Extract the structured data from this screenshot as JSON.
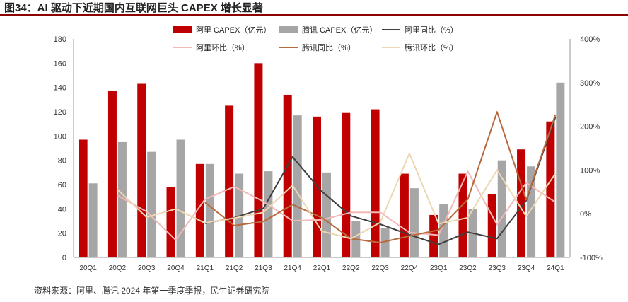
{
  "title": "图34：AI 驱动下近期国内互联网巨头 CAPEX 增长显著",
  "source": "资料来源：阿里、腾讯 2024 年第一季度季报，民生证券研究院",
  "chart_data": {
    "type": "bar",
    "categories": [
      "20Q1",
      "20Q2",
      "20Q3",
      "20Q4",
      "21Q1",
      "21Q2",
      "21Q3",
      "21Q4",
      "22Q1",
      "22Q2",
      "22Q3",
      "22Q4",
      "23Q1",
      "23Q2",
      "23Q3",
      "23Q4",
      "24Q1"
    ],
    "y_left": {
      "min": 0,
      "max": 180,
      "ticks": [
        "0",
        "20",
        "40",
        "60",
        "80",
        "100",
        "120",
        "140",
        "160",
        "180"
      ]
    },
    "y_right": {
      "min": -100,
      "max": 400,
      "ticks": [
        "-100%",
        "0%",
        "100%",
        "200%",
        "300%",
        "400%"
      ]
    },
    "grid": false,
    "legend_position": "top",
    "bar_series": [
      {
        "name": "阿里 CAPEX（亿元）",
        "color": "#c00000",
        "values": [
          97,
          137,
          143,
          58,
          77,
          125,
          160,
          134,
          116,
          119,
          122,
          69,
          35,
          69,
          52,
          89,
          112
        ]
      },
      {
        "name": "腾讯 CAPEX（亿元）",
        "color": "#a6a6a6",
        "values": [
          61,
          95,
          87,
          97,
          77,
          69,
          71,
          117,
          70,
          30,
          24,
          57,
          44,
          40,
          80,
          75,
          144
        ]
      }
    ],
    "line_series": [
      {
        "name": "阿里同比（%）",
        "color": "#404040",
        "values": [
          null,
          null,
          null,
          null,
          -22,
          -9,
          12,
          130,
          51,
          -5,
          -24,
          -48,
          -70,
          -42,
          -57,
          30,
          221
        ]
      },
      {
        "name": "阿里环比（%）",
        "color": "#f2b8b8",
        "values": [
          null,
          42,
          5,
          -60,
          33,
          62,
          28,
          -16,
          -14,
          3,
          3,
          -43,
          -49,
          97,
          -25,
          71,
          26
        ]
      },
      {
        "name": "腾讯同比（%）",
        "color": "#b86a3c",
        "values": [
          null,
          null,
          null,
          null,
          26,
          -27,
          -18,
          21,
          -9,
          -57,
          -66,
          -51,
          -37,
          33,
          233,
          32,
          227
        ]
      },
      {
        "name": "腾讯环比（%）",
        "color": "#ecd7b2",
        "values": [
          null,
          56,
          -8,
          11,
          -21,
          -10,
          3,
          65,
          -40,
          -57,
          -20,
          138,
          -23,
          -9,
          100,
          -6,
          92
        ]
      }
    ]
  }
}
